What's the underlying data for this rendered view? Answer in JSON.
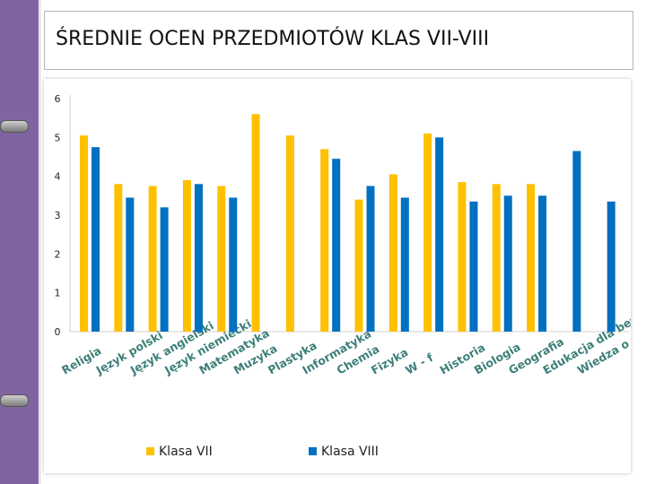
{
  "slide": {
    "title": "ŚREDNIE OCEN PRZEDMIOTÓW KLAS VII-VIII"
  },
  "colors": {
    "sidebar": "#8064a2",
    "klasa_vii": "#ffc000",
    "klasa_viii": "#0070c0"
  },
  "chart_data": {
    "type": "bar",
    "title": "ŚREDNIE OCEN PRZEDMIOTÓW KLAS VII-VIII",
    "categories": [
      "Religia",
      "Język polski",
      "Język angielski",
      "Język niemiecki",
      "Matematyka",
      "Muzyka",
      "Plastyka",
      "Informatyka",
      "Chemia",
      "Fizyka",
      "W - f",
      "Historia",
      "Biologia",
      "Geografia",
      "Edukacja dla bezpieczeństwa",
      "Wiedza o społeczeństwie"
    ],
    "series": [
      {
        "name": "Klasa VII",
        "color": "#ffc000",
        "values": [
          5.05,
          3.8,
          3.75,
          3.9,
          3.75,
          5.6,
          5.05,
          4.7,
          3.4,
          4.05,
          5.1,
          3.85,
          3.8,
          3.8,
          null,
          null
        ]
      },
      {
        "name": "Klasa VIII",
        "color": "#0070c0",
        "values": [
          4.75,
          3.45,
          3.2,
          3.8,
          3.45,
          null,
          null,
          4.45,
          3.75,
          3.45,
          5.0,
          3.35,
          3.5,
          3.5,
          4.65,
          3.35
        ]
      }
    ],
    "y_ticks": [
      "0",
      "1",
      "2",
      "3",
      "4",
      "5",
      "6"
    ],
    "ylim": [
      0,
      6
    ],
    "grid": false,
    "legend": "bottom"
  }
}
